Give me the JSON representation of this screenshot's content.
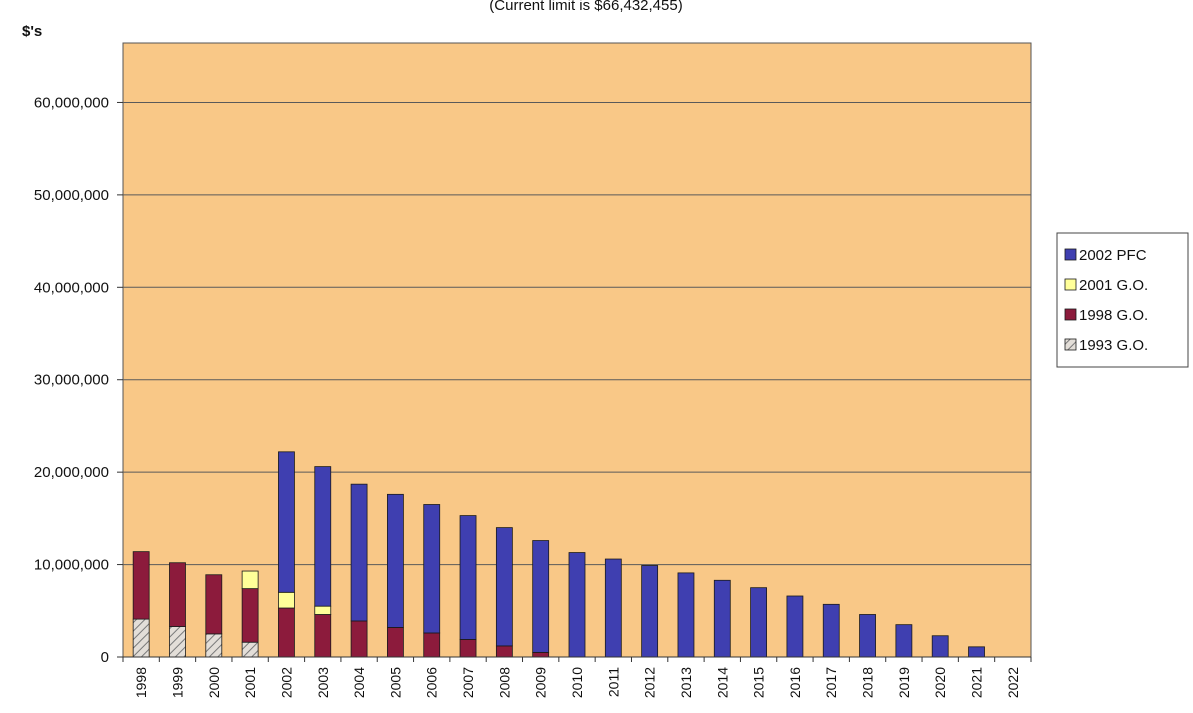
{
  "chart_data": {
    "type": "bar",
    "stacked": true,
    "title": "",
    "subtitle": "(Current limit is $66,432,455)",
    "ylabel": "$'s",
    "xlabel": "",
    "ylim": [
      0,
      66432455
    ],
    "yticks": [
      0,
      10000000,
      20000000,
      30000000,
      40000000,
      50000000,
      60000000
    ],
    "ytick_labels": [
      "0",
      "10,000,000",
      "20,000,000",
      "30,000,000",
      "40,000,000",
      "50,000,000",
      "60,000,000"
    ],
    "grid": true,
    "legend_position": "right",
    "plot_background": "#F9C887",
    "categories": [
      "1998",
      "1999",
      "2000",
      "2001",
      "2002",
      "2003",
      "2004",
      "2005",
      "2006",
      "2007",
      "2008",
      "2009",
      "2010",
      "2011",
      "2012",
      "2013",
      "2014",
      "2015",
      "2016",
      "2017",
      "2018",
      "2019",
      "2020",
      "2021",
      "2022"
    ],
    "series": [
      {
        "name": "1993 G.O.",
        "color": "#D9D4CF",
        "pattern": "hatch",
        "values": [
          4100000,
          3300000,
          2500000,
          1600000,
          0,
          0,
          0,
          0,
          0,
          0,
          0,
          0,
          0,
          0,
          0,
          0,
          0,
          0,
          0,
          0,
          0,
          0,
          0,
          0,
          0
        ]
      },
      {
        "name": "1998 G.O.",
        "color": "#8C1B3C",
        "values": [
          7300000,
          6900000,
          6400000,
          5800000,
          5300000,
          4600000,
          3900000,
          3200000,
          2600000,
          1900000,
          1200000,
          500000,
          0,
          0,
          0,
          0,
          0,
          0,
          0,
          0,
          0,
          0,
          0,
          0,
          0
        ]
      },
      {
        "name": "2001 G.O.",
        "color": "#FFFF99",
        "values": [
          0,
          0,
          0,
          1900000,
          1700000,
          900000,
          0,
          0,
          0,
          0,
          0,
          0,
          0,
          0,
          0,
          0,
          0,
          0,
          0,
          0,
          0,
          0,
          0,
          0,
          0
        ]
      },
      {
        "name": "2002 PFC",
        "color": "#3F3FB0",
        "values": [
          0,
          0,
          0,
          0,
          15200000,
          15100000,
          14800000,
          14400000,
          13900000,
          13400000,
          12800000,
          12100000,
          11300000,
          10600000,
          9900000,
          9100000,
          8300000,
          7500000,
          6600000,
          5700000,
          4600000,
          3500000,
          2300000,
          1100000,
          0
        ]
      }
    ],
    "legend_order": [
      "2002 PFC",
      "2001 G.O.",
      "1998 G.O.",
      "1993 G.O."
    ]
  }
}
